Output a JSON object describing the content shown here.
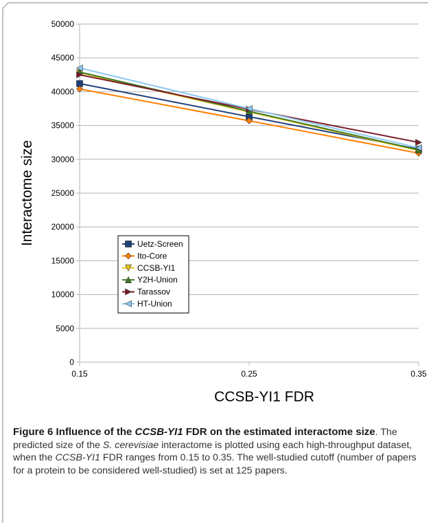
{
  "chart_data": {
    "type": "line",
    "title": "",
    "xlabel": "CCSB-YI1 FDR",
    "ylabel": "Interactome size",
    "x": [
      0.15,
      0.25,
      0.35
    ],
    "x_tick_labels": [
      "0.15",
      "0.25",
      "0.35"
    ],
    "xlim": [
      0.15,
      0.35
    ],
    "ylim": [
      0,
      50000
    ],
    "y_ticks": [
      0,
      5000,
      10000,
      15000,
      20000,
      25000,
      30000,
      35000,
      40000,
      45000,
      50000
    ],
    "grid": "horizontal",
    "legend_position": "left-center",
    "series": [
      {
        "name": "Uetz-Screen",
        "values": [
          41200,
          36300,
          31500
        ],
        "color": "#1f3f7a",
        "marker": "square"
      },
      {
        "name": "Ito-Core",
        "values": [
          40400,
          35700,
          30900
        ],
        "color": "#ff7f00",
        "marker": "diamond"
      },
      {
        "name": "CCSB-YI1",
        "values": [
          42800,
          37000,
          31300
        ],
        "color": "#e8c21a",
        "marker": "triangle-down"
      },
      {
        "name": "Y2H-Union",
        "values": [
          42900,
          37100,
          31400
        ],
        "color": "#3d7a25",
        "marker": "triangle-up"
      },
      {
        "name": "Tarassov",
        "values": [
          42500,
          37400,
          32500
        ],
        "color": "#7a1a2a",
        "marker": "triangle-right"
      },
      {
        "name": "HT-Union",
        "values": [
          43500,
          37500,
          31700
        ],
        "color": "#8ec8f0",
        "marker": "triangle-left"
      }
    ]
  },
  "caption": {
    "figure_label": "Figure 6",
    "title_pre": "Influence of the ",
    "title_italic": "CCSB-YI1",
    "title_post": " FDR on the estimated interactome size",
    "body_1": ". The predicted size of the ",
    "body_italic_1": "S. cerevisiae",
    "body_2": " interactome is plotted using each high-throughput dataset, when the ",
    "body_italic_2": "CCSB-YI1",
    "body_3": " FDR ranges from 0.15 to 0.35. The well-studied cutoff (number of papers for a protein to be considered well-studied) is set at 125 papers."
  }
}
